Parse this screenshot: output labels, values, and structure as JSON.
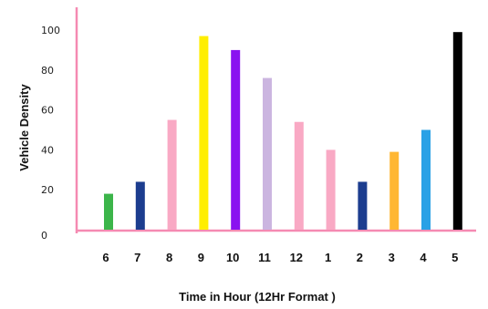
{
  "chart_data": {
    "type": "bar",
    "title": "",
    "xlabel": "Time in Hour (12Hr Format  )",
    "ylabel": "Vehicle Density",
    "categories": [
      "6",
      "7",
      "8",
      "9",
      "10",
      "11",
      "12",
      "1",
      "2",
      "3",
      "4",
      "5"
    ],
    "values": [
      18,
      24,
      55,
      97,
      90,
      76,
      54,
      40,
      24,
      39,
      50,
      99
    ],
    "colors": [
      "#3cb54a",
      "#1c3d8f",
      "#f9a9c4",
      "#ffee00",
      "#8a12f0",
      "#cbb5e0",
      "#f9a9c4",
      "#f9a9c4",
      "#1c3d8f",
      "#ffb733",
      "#2aa1e6",
      "#000000"
    ],
    "yticks": [
      0,
      20,
      40,
      60,
      80,
      100
    ],
    "ylim": [
      0,
      100
    ],
    "axis_color": "#f58ab2",
    "grid": false,
    "legend": false
  }
}
